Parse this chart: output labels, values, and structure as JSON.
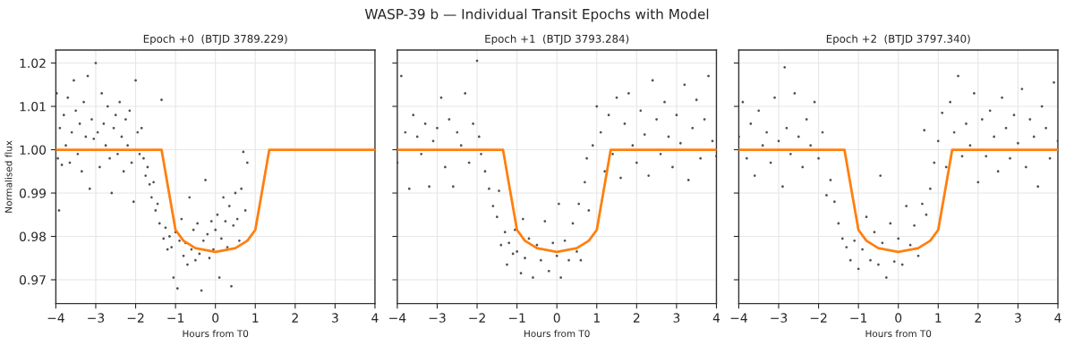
{
  "chart_data": [
    {
      "type": "scatter",
      "title": "Epoch +0  (BTJD 3789.229)",
      "xlabel": "Hours from T0",
      "ylabel": "Normalised flux",
      "annotations": [
        "WASP-39 b — Individual Transit Epochs with Model"
      ],
      "xlim": [
        -4,
        4
      ],
      "ylim": [
        0.9645,
        1.023
      ],
      "xticks": [
        {
          "value": -4,
          "label": "−4"
        },
        {
          "value": -3,
          "label": "−3"
        },
        {
          "value": -2,
          "label": "−2"
        },
        {
          "value": -1,
          "label": "−1"
        },
        0,
        1,
        2,
        3,
        4
      ],
      "yticks": [
        {
          "value": 0.97,
          "label": "0.97"
        },
        {
          "value": 0.98,
          "label": "0.98"
        },
        {
          "value": 0.99,
          "label": "0.99"
        },
        {
          "value": 1.0,
          "label": "1.00"
        },
        {
          "value": 1.01,
          "label": "1.01"
        },
        {
          "value": 1.02,
          "label": "1.02"
        }
      ],
      "grid": true,
      "series": [
        {
          "color": "#333333",
          "x": [
            -3.98,
            -3.95,
            -3.92,
            -3.9,
            -3.85,
            -3.8,
            -3.75,
            -3.7,
            -3.65,
            -3.6,
            -3.55,
            -3.5,
            -3.45,
            -3.4,
            -3.35,
            -3.3,
            -3.25,
            -3.2,
            -3.15,
            -3.1,
            -3.05,
            -3.0,
            -2.95,
            -2.9,
            -2.85,
            -2.8,
            -2.75,
            -2.7,
            -2.65,
            -2.6,
            -2.55,
            -2.5,
            -2.45,
            -2.4,
            -2.35,
            -2.3,
            -2.25,
            -2.2,
            -2.15,
            -2.1,
            -2.05,
            -2.0,
            -1.95,
            -1.9,
            -1.85,
            -1.8,
            -1.75,
            -1.7,
            -1.65,
            -1.6,
            -1.55,
            -1.5,
            -1.45,
            -1.4,
            -1.35,
            -1.3,
            -1.25,
            -1.2,
            -1.15,
            -1.1,
            -1.05,
            -1.0,
            -0.95,
            -0.9,
            -0.85,
            -0.8,
            -0.75,
            -0.7,
            -0.65,
            -0.6,
            -0.55,
            -0.5,
            -0.45,
            -0.4,
            -0.35,
            -0.3,
            -0.25,
            -0.2,
            -0.15,
            -0.1,
            -0.05,
            0.0,
            0.05,
            0.1,
            0.15,
            0.2,
            0.25,
            0.3,
            0.35,
            0.4,
            0.45,
            0.5,
            0.55,
            0.6,
            0.65,
            0.7,
            0.75,
            0.8
          ],
          "values": [
            1.013,
            0.998,
            0.986,
            1.005,
            0.9965,
            1.008,
            1.001,
            1.012,
            0.997,
            1.004,
            1.016,
            1.009,
            0.999,
            1.006,
            0.995,
            1.011,
            1.003,
            1.017,
            0.991,
            1.007,
            1.0025,
            1.02,
            1.004,
            0.996,
            1.013,
            1.006,
            1.001,
            1.01,
            0.998,
            0.99,
            1.005,
            1.008,
            0.999,
            1.011,
            1.003,
            0.995,
            1.007,
            1.001,
            1.009,
            0.997,
            0.988,
            1.016,
            1.004,
            0.999,
            1.005,
            0.998,
            0.994,
            0.996,
            0.992,
            0.989,
            0.9925,
            0.986,
            0.9875,
            0.983,
            1.0115,
            0.9795,
            0.982,
            0.977,
            0.98,
            0.9775,
            0.9705,
            0.981,
            0.968,
            0.979,
            0.984,
            0.9755,
            0.9785,
            0.9735,
            0.989,
            0.977,
            0.9815,
            0.9745,
            0.983,
            0.976,
            0.9675,
            0.979,
            0.993,
            0.9805,
            0.975,
            0.9835,
            0.977,
            0.9815,
            0.985,
            0.9705,
            0.9795,
            0.989,
            0.9835,
            0.9775,
            0.987,
            0.9685,
            0.9825,
            0.99,
            0.984,
            0.979,
            0.991,
            0.9995,
            0.986,
            0.997
          ]
        },
        {
          "type": "line",
          "color": "#ff7f0e",
          "x": [
            -4,
            -1.35,
            -1.2,
            -1.0,
            -0.8,
            -0.5,
            0,
            0.5,
            0.8,
            1.0,
            1.2,
            1.35,
            4
          ],
          "values": [
            1.0,
            1.0,
            0.992,
            0.9815,
            0.979,
            0.9773,
            0.9764,
            0.9773,
            0.979,
            0.9815,
            0.992,
            1.0,
            1.0
          ]
        }
      ]
    },
    {
      "type": "scatter",
      "title": "Epoch +1  (BTJD 3793.284)",
      "xlabel": "Hours from T0",
      "tick_labels": "x",
      "xlim": [
        -4,
        4
      ],
      "ylim": [
        0.9645,
        1.023
      ],
      "xticks": [
        {
          "value": -4,
          "label": "−4"
        },
        {
          "value": -3,
          "label": "−3"
        },
        {
          "value": -2,
          "label": "−2"
        },
        {
          "value": -1,
          "label": "−1"
        },
        0,
        1,
        2,
        3,
        4
      ],
      "yticks": [
        0.97,
        0.98,
        0.99,
        1.0,
        1.01,
        1.02
      ],
      "grid": true,
      "series": [
        {
          "color": "#333333",
          "x": [
            -4.0,
            -3.9,
            -3.8,
            -3.7,
            -3.6,
            -3.5,
            -3.4,
            -3.3,
            -3.2,
            -3.1,
            -3.0,
            -2.9,
            -2.8,
            -2.7,
            -2.6,
            -2.5,
            -2.4,
            -2.3,
            -2.2,
            -2.1,
            -2.0,
            -1.95,
            -1.9,
            -1.8,
            -1.7,
            -1.6,
            -1.5,
            -1.45,
            -1.4,
            -1.3,
            -1.25,
            -1.2,
            -1.1,
            -1.05,
            -1.0,
            -0.9,
            -0.85,
            -0.8,
            -0.7,
            -0.6,
            -0.5,
            -0.4,
            -0.3,
            -0.2,
            -0.1,
            0.0,
            0.05,
            0.1,
            0.2,
            0.3,
            0.4,
            0.5,
            0.55,
            0.6,
            0.7,
            0.75,
            0.8,
            0.9,
            1.0,
            1.1,
            1.2,
            1.3,
            1.4,
            1.5,
            1.6,
            1.7,
            1.8,
            1.9,
            2.0,
            2.1,
            2.2,
            2.3,
            2.4,
            2.5,
            2.6,
            2.7,
            2.8,
            2.9,
            3.0,
            3.1,
            3.2,
            3.3,
            3.4,
            3.5,
            3.6,
            3.7,
            3.8,
            3.9,
            4.0
          ],
          "values": [
            0.997,
            1.017,
            1.004,
            0.991,
            1.008,
            1.003,
            0.999,
            1.006,
            0.9915,
            1.002,
            1.005,
            1.012,
            0.996,
            1.007,
            0.9915,
            1.004,
            1.001,
            1.013,
            0.997,
            1.006,
            1.0205,
            1.003,
            0.999,
            0.995,
            0.991,
            0.987,
            0.9845,
            0.9905,
            0.978,
            0.981,
            0.9735,
            0.9785,
            0.976,
            0.9815,
            0.9765,
            0.9715,
            0.984,
            0.975,
            0.9795,
            0.9705,
            0.978,
            0.9745,
            0.9835,
            0.972,
            0.9785,
            0.9755,
            0.9875,
            0.9705,
            0.979,
            0.9745,
            0.983,
            0.9765,
            0.9875,
            0.9745,
            0.9925,
            0.998,
            0.986,
            1.001,
            1.01,
            1.004,
            0.995,
            1.008,
            0.999,
            1.012,
            0.9935,
            1.006,
            1.013,
            1.001,
            0.997,
            1.009,
            1.0035,
            0.994,
            1.016,
            1.007,
            0.999,
            1.011,
            1.003,
            0.996,
            1.008,
            1.0015,
            1.015,
            0.993,
            1.005,
            1.0115,
            0.998,
            1.007,
            1.017,
            1.002,
            0.9985
          ]
        },
        {
          "type": "line",
          "color": "#ff7f0e",
          "x": [
            -4,
            -1.35,
            -1.2,
            -1.0,
            -0.8,
            -0.5,
            0,
            0.5,
            0.8,
            1.0,
            1.2,
            1.35,
            4
          ],
          "values": [
            1.0,
            1.0,
            0.992,
            0.9815,
            0.979,
            0.9773,
            0.9764,
            0.9773,
            0.979,
            0.9815,
            0.992,
            1.0,
            1.0
          ]
        }
      ]
    },
    {
      "type": "scatter",
      "title": "Epoch +2  (BTJD 3797.340)",
      "xlabel": "Hours from T0",
      "tick_labels": "x",
      "xlim": [
        -4,
        4
      ],
      "ylim": [
        0.9645,
        1.023
      ],
      "xticks": [
        {
          "value": -4,
          "label": "−4"
        },
        {
          "value": -3,
          "label": "−3"
        },
        {
          "value": -2,
          "label": "−2"
        },
        {
          "value": -1,
          "label": "−1"
        },
        0,
        1,
        2,
        3,
        4
      ],
      "yticks": [
        0.97,
        0.98,
        0.99,
        1.0,
        1.01,
        1.02
      ],
      "grid": true,
      "series": [
        {
          "color": "#333333",
          "x": [
            -4.0,
            -3.9,
            -3.8,
            -3.7,
            -3.6,
            -3.5,
            -3.4,
            -3.3,
            -3.2,
            -3.1,
            -3.0,
            -2.9,
            -2.85,
            -2.8,
            -2.7,
            -2.6,
            -2.5,
            -2.4,
            -2.3,
            -2.2,
            -2.1,
            -2.0,
            -1.9,
            -1.8,
            -1.7,
            -1.6,
            -1.5,
            -1.4,
            -1.3,
            -1.2,
            -1.1,
            -1.0,
            -0.9,
            -0.8,
            -0.7,
            -0.6,
            -0.5,
            -0.45,
            -0.4,
            -0.3,
            -0.2,
            -0.1,
            0.0,
            0.1,
            0.2,
            0.3,
            0.4,
            0.5,
            0.6,
            0.65,
            0.7,
            0.8,
            0.9,
            1.0,
            1.1,
            1.2,
            1.3,
            1.4,
            1.5,
            1.6,
            1.7,
            1.8,
            1.9,
            2.0,
            2.1,
            2.2,
            2.3,
            2.4,
            2.5,
            2.6,
            2.7,
            2.8,
            2.9,
            3.0,
            3.1,
            3.2,
            3.3,
            3.4,
            3.5,
            3.6,
            3.7,
            3.8,
            3.9,
            4.0
          ],
          "values": [
            1.003,
            1.011,
            0.998,
            1.006,
            0.994,
            1.009,
            1.001,
            1.004,
            0.997,
            1.012,
            1.002,
            0.9915,
            1.019,
            1.005,
            0.999,
            1.013,
            1.003,
            0.996,
            1.007,
            1.001,
            1.011,
            0.998,
            1.004,
            0.9895,
            0.993,
            0.988,
            0.983,
            0.9795,
            0.9775,
            0.9745,
            0.979,
            0.9725,
            0.977,
            0.9845,
            0.9745,
            0.981,
            0.9735,
            0.994,
            0.9785,
            0.9705,
            0.983,
            0.9742,
            0.9795,
            0.9735,
            0.987,
            0.978,
            0.9825,
            0.9755,
            0.9875,
            1.0045,
            0.985,
            0.991,
            0.997,
            1.002,
            1.0085,
            0.996,
            1.011,
            1.004,
            1.017,
            0.9985,
            1.006,
            1.001,
            1.013,
            0.9925,
            1.007,
            0.9985,
            1.009,
            1.003,
            0.995,
            1.012,
            1.005,
            0.998,
            1.008,
            1.0015,
            1.014,
            0.996,
            1.007,
            1.003,
            0.9915,
            1.01,
            1.005,
            0.998,
            1.0155,
            1.002
          ]
        },
        {
          "type": "line",
          "color": "#ff7f0e",
          "x": [
            -4,
            -1.35,
            -1.2,
            -1.0,
            -0.8,
            -0.5,
            0,
            0.5,
            0.8,
            1.0,
            1.2,
            1.35,
            4
          ],
          "values": [
            1.0,
            1.0,
            0.992,
            0.9815,
            0.979,
            0.9773,
            0.9764,
            0.9773,
            0.979,
            0.9815,
            0.992,
            1.0,
            1.0
          ]
        }
      ]
    }
  ]
}
